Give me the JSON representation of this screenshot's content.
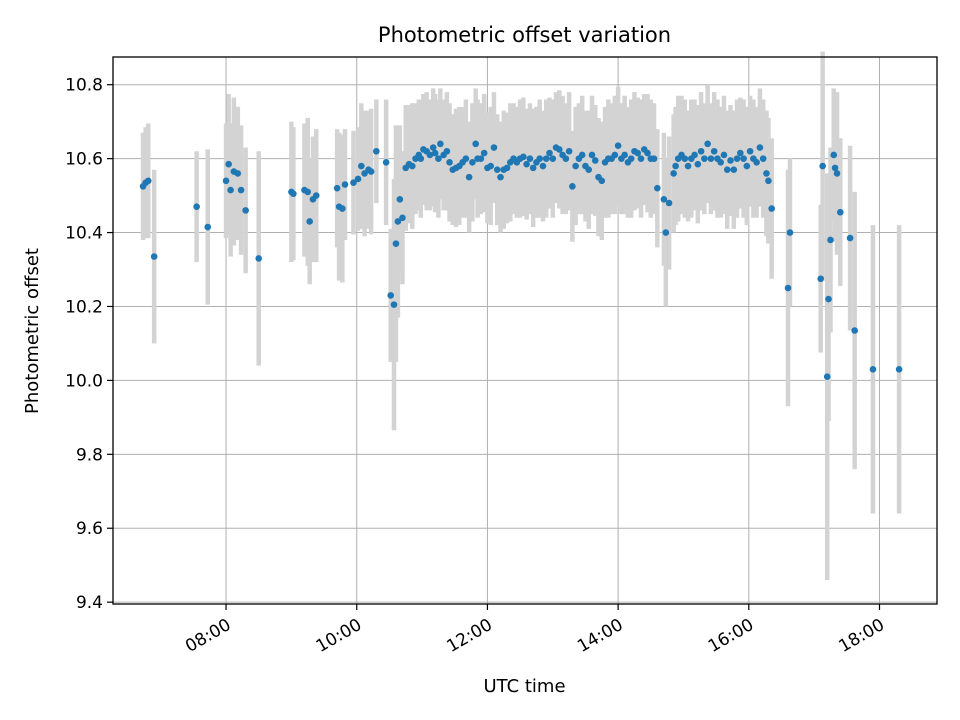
{
  "chart_data": {
    "type": "scatter",
    "title": "Photometric offset variation",
    "xlabel": "UTC time",
    "ylabel": "Photometric offset",
    "x_unit": "hours UTC",
    "xlim": [
      6.27,
      18.88
    ],
    "ylim": [
      9.395,
      10.875
    ],
    "x_ticks": [
      {
        "value": 8,
        "label": "08:00"
      },
      {
        "value": 10,
        "label": "10:00"
      },
      {
        "value": 12,
        "label": "12:00"
      },
      {
        "value": 14,
        "label": "14:00"
      },
      {
        "value": 16,
        "label": "16:00"
      },
      {
        "value": 18,
        "label": "18:00"
      }
    ],
    "y_ticks": [
      {
        "value": 9.4,
        "label": "9.4"
      },
      {
        "value": 9.6,
        "label": "9.6"
      },
      {
        "value": 9.8,
        "label": "9.8"
      },
      {
        "value": 10.0,
        "label": "10.0"
      },
      {
        "value": 10.2,
        "label": "10.2"
      },
      {
        "value": 10.4,
        "label": "10.4"
      },
      {
        "value": 10.6,
        "label": "10.6"
      },
      {
        "value": 10.8,
        "label": "10.8"
      }
    ],
    "grid": true,
    "point_color": "#1f77b4",
    "error_bar_color": "#d3d3d3",
    "points": [
      [
        6.73,
        10.525,
        0.145
      ],
      [
        6.77,
        10.535,
        0.15
      ],
      [
        6.81,
        10.54,
        0.155
      ],
      [
        6.9,
        10.335,
        0.235
      ],
      [
        7.55,
        10.47,
        0.15
      ],
      [
        7.72,
        10.415,
        0.21
      ],
      [
        8.0,
        10.54,
        0.155
      ],
      [
        8.04,
        10.585,
        0.19
      ],
      [
        8.07,
        10.515,
        0.18
      ],
      [
        8.12,
        10.565,
        0.2
      ],
      [
        8.18,
        10.56,
        0.18
      ],
      [
        8.23,
        10.515,
        0.175
      ],
      [
        8.3,
        10.46,
        0.17
      ],
      [
        8.5,
        10.33,
        0.29
      ],
      [
        9.0,
        10.51,
        0.19
      ],
      [
        9.03,
        10.505,
        0.18
      ],
      [
        9.2,
        10.515,
        0.18
      ],
      [
        9.25,
        10.51,
        0.2
      ],
      [
        9.28,
        10.43,
        0.17
      ],
      [
        9.33,
        10.49,
        0.17
      ],
      [
        9.38,
        10.5,
        0.18
      ],
      [
        9.7,
        10.52,
        0.16
      ],
      [
        9.73,
        10.47,
        0.2
      ],
      [
        9.78,
        10.465,
        0.2
      ],
      [
        9.82,
        10.53,
        0.15
      ],
      [
        9.95,
        10.535,
        0.14
      ],
      [
        10.02,
        10.545,
        0.14
      ],
      [
        10.07,
        10.58,
        0.17
      ],
      [
        10.12,
        10.56,
        0.17
      ],
      [
        10.18,
        10.57,
        0.16
      ],
      [
        10.22,
        10.565,
        0.17
      ],
      [
        10.3,
        10.62,
        0.14
      ],
      [
        10.45,
        10.59,
        0.17
      ],
      [
        10.52,
        10.23,
        0.18
      ],
      [
        10.57,
        10.205,
        0.34
      ],
      [
        10.6,
        10.37,
        0.32
      ],
      [
        10.63,
        10.43,
        0.26
      ],
      [
        10.66,
        10.49,
        0.2
      ],
      [
        10.7,
        10.44,
        0.18
      ],
      [
        10.75,
        10.575,
        0.17
      ],
      [
        10.8,
        10.585,
        0.16
      ],
      [
        10.85,
        10.58,
        0.17
      ],
      [
        10.9,
        10.6,
        0.15
      ],
      [
        10.95,
        10.61,
        0.15
      ],
      [
        10.98,
        10.6,
        0.16
      ],
      [
        11.02,
        10.625,
        0.15
      ],
      [
        11.07,
        10.62,
        0.16
      ],
      [
        11.12,
        10.61,
        0.15
      ],
      [
        11.17,
        10.63,
        0.16
      ],
      [
        11.2,
        10.615,
        0.16
      ],
      [
        11.25,
        10.6,
        0.16
      ],
      [
        11.28,
        10.64,
        0.15
      ],
      [
        11.33,
        10.61,
        0.15
      ],
      [
        11.38,
        10.62,
        0.16
      ],
      [
        11.42,
        10.59,
        0.16
      ],
      [
        11.47,
        10.57,
        0.15
      ],
      [
        11.52,
        10.575,
        0.16
      ],
      [
        11.57,
        10.58,
        0.16
      ],
      [
        11.62,
        10.59,
        0.15
      ],
      [
        11.67,
        10.6,
        0.16
      ],
      [
        11.72,
        10.55,
        0.15
      ],
      [
        11.77,
        10.59,
        0.16
      ],
      [
        11.82,
        10.64,
        0.15
      ],
      [
        11.85,
        10.6,
        0.16
      ],
      [
        11.9,
        10.6,
        0.15
      ],
      [
        11.95,
        10.615,
        0.16
      ],
      [
        12.0,
        10.575,
        0.15
      ],
      [
        12.05,
        10.58,
        0.16
      ],
      [
        12.1,
        10.63,
        0.15
      ],
      [
        12.15,
        10.57,
        0.15
      ],
      [
        12.2,
        10.55,
        0.15
      ],
      [
        12.25,
        10.57,
        0.16
      ],
      [
        12.3,
        10.575,
        0.15
      ],
      [
        12.35,
        10.59,
        0.16
      ],
      [
        12.4,
        10.6,
        0.15
      ],
      [
        12.45,
        10.59,
        0.15
      ],
      [
        12.5,
        10.6,
        0.16
      ],
      [
        12.55,
        10.605,
        0.16
      ],
      [
        12.6,
        10.585,
        0.15
      ],
      [
        12.65,
        10.6,
        0.15
      ],
      [
        12.7,
        10.575,
        0.16
      ],
      [
        12.75,
        10.59,
        0.15
      ],
      [
        12.8,
        10.6,
        0.16
      ],
      [
        12.85,
        10.58,
        0.15
      ],
      [
        12.9,
        10.6,
        0.16
      ],
      [
        12.95,
        10.615,
        0.15
      ],
      [
        13.0,
        10.6,
        0.16
      ],
      [
        13.05,
        10.63,
        0.15
      ],
      [
        13.1,
        10.625,
        0.16
      ],
      [
        13.15,
        10.61,
        0.16
      ],
      [
        13.2,
        10.6,
        0.15
      ],
      [
        13.25,
        10.62,
        0.16
      ],
      [
        13.3,
        10.525,
        0.15
      ],
      [
        13.35,
        10.58,
        0.16
      ],
      [
        13.4,
        10.6,
        0.15
      ],
      [
        13.45,
        10.61,
        0.16
      ],
      [
        13.5,
        10.58,
        0.15
      ],
      [
        13.55,
        10.57,
        0.16
      ],
      [
        13.6,
        10.61,
        0.16
      ],
      [
        13.65,
        10.595,
        0.15
      ],
      [
        13.7,
        10.55,
        0.16
      ],
      [
        13.75,
        10.54,
        0.16
      ],
      [
        13.8,
        10.59,
        0.15
      ],
      [
        13.85,
        10.6,
        0.16
      ],
      [
        13.9,
        10.6,
        0.15
      ],
      [
        13.95,
        10.61,
        0.16
      ],
      [
        14.0,
        10.635,
        0.16
      ],
      [
        14.05,
        10.6,
        0.15
      ],
      [
        14.1,
        10.61,
        0.16
      ],
      [
        14.15,
        10.59,
        0.15
      ],
      [
        14.2,
        10.6,
        0.16
      ],
      [
        14.25,
        10.62,
        0.16
      ],
      [
        14.3,
        10.615,
        0.15
      ],
      [
        14.35,
        10.6,
        0.16
      ],
      [
        14.4,
        10.625,
        0.15
      ],
      [
        14.45,
        10.615,
        0.16
      ],
      [
        14.5,
        10.6,
        0.16
      ],
      [
        14.55,
        10.6,
        0.15
      ],
      [
        14.6,
        10.52,
        0.16
      ],
      [
        14.7,
        10.49,
        0.18
      ],
      [
        14.73,
        10.4,
        0.2
      ],
      [
        14.78,
        10.48,
        0.18
      ],
      [
        14.85,
        10.56,
        0.16
      ],
      [
        14.88,
        10.58,
        0.16
      ],
      [
        14.92,
        10.6,
        0.17
      ],
      [
        14.97,
        10.61,
        0.16
      ],
      [
        15.02,
        10.6,
        0.16
      ],
      [
        15.07,
        10.58,
        0.15
      ],
      [
        15.12,
        10.6,
        0.16
      ],
      [
        15.17,
        10.61,
        0.15
      ],
      [
        15.22,
        10.585,
        0.16
      ],
      [
        15.27,
        10.62,
        0.16
      ],
      [
        15.32,
        10.6,
        0.15
      ],
      [
        15.37,
        10.64,
        0.16
      ],
      [
        15.42,
        10.6,
        0.15
      ],
      [
        15.47,
        10.62,
        0.16
      ],
      [
        15.52,
        10.6,
        0.16
      ],
      [
        15.57,
        10.59,
        0.15
      ],
      [
        15.62,
        10.61,
        0.16
      ],
      [
        15.67,
        10.57,
        0.16
      ],
      [
        15.72,
        10.595,
        0.15
      ],
      [
        15.77,
        10.57,
        0.16
      ],
      [
        15.82,
        10.6,
        0.16
      ],
      [
        15.87,
        10.615,
        0.15
      ],
      [
        15.92,
        10.6,
        0.16
      ],
      [
        15.97,
        10.58,
        0.16
      ],
      [
        16.02,
        10.62,
        0.15
      ],
      [
        16.07,
        10.6,
        0.16
      ],
      [
        16.12,
        10.59,
        0.15
      ],
      [
        16.17,
        10.63,
        0.16
      ],
      [
        16.22,
        10.6,
        0.16
      ],
      [
        16.27,
        10.56,
        0.17
      ],
      [
        16.3,
        10.54,
        0.17
      ],
      [
        16.35,
        10.465,
        0.19
      ],
      [
        16.6,
        10.25,
        0.32
      ],
      [
        16.63,
        10.4,
        0.2
      ],
      [
        17.1,
        10.275,
        0.2
      ],
      [
        17.13,
        10.58,
        0.31
      ],
      [
        17.2,
        10.01,
        0.55
      ],
      [
        17.22,
        10.22,
        0.33
      ],
      [
        17.25,
        10.38,
        0.25
      ],
      [
        17.3,
        10.61,
        0.18
      ],
      [
        17.32,
        10.575,
        0.2
      ],
      [
        17.35,
        10.56,
        0.22
      ],
      [
        17.4,
        10.455,
        0.2
      ],
      [
        17.55,
        10.385,
        0.25
      ],
      [
        17.62,
        10.135,
        0.375
      ],
      [
        17.9,
        10.03,
        0.39
      ],
      [
        18.3,
        10.03,
        0.39
      ]
    ]
  }
}
